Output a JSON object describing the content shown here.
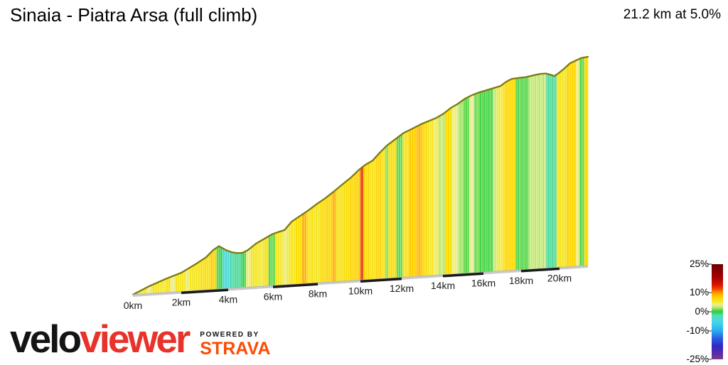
{
  "header": {
    "title": "Sinaia - Piatra Arsa (full climb)",
    "stats": "21.2 km at 5.0%"
  },
  "logo": {
    "brand_black": "velo",
    "brand_red": "viewer",
    "powered_by": "POWERED BY",
    "strava": "STRAVA"
  },
  "legend": {
    "labels": [
      "25%",
      "10%",
      "0%",
      "-10%",
      "-25%"
    ],
    "values": [
      25,
      10,
      0,
      -10,
      -25
    ],
    "max": 25,
    "min": -25,
    "unit": "%"
  },
  "chart_data": {
    "type": "area",
    "title": "Sinaia - Piatra Arsa (full climb)",
    "subtitle": "21.2 km at 5.0%",
    "total_distance_km": 21.2,
    "avg_gradient_pct": 5.0,
    "x_unit": "km",
    "x_max_km": 21.2,
    "grid": false,
    "legend_position": "bottom-right",
    "x_ticks": [
      {
        "km": 0,
        "label": "0km"
      },
      {
        "km": 2,
        "label": "2km"
      },
      {
        "km": 4,
        "label": "4km"
      },
      {
        "km": 6,
        "label": "6km"
      },
      {
        "km": 8,
        "label": "8km"
      },
      {
        "km": 10,
        "label": "10km"
      },
      {
        "km": 12,
        "label": "12km"
      },
      {
        "km": 14,
        "label": "14km"
      },
      {
        "km": 16,
        "label": "16km"
      },
      {
        "km": 18,
        "label": "18km"
      },
      {
        "km": 20,
        "label": "20km"
      }
    ],
    "color_scale": {
      "unit": "%",
      "stops": [
        [
          25,
          "#6d0000"
        ],
        [
          18,
          "#a80000"
        ],
        [
          14,
          "#d81800"
        ],
        [
          12,
          "#f04400"
        ],
        [
          10,
          "#ff9800"
        ],
        [
          8,
          "#ffc800"
        ],
        [
          7,
          "#ffd800"
        ],
        [
          6,
          "#f8e30e"
        ],
        [
          5,
          "#f1e838"
        ],
        [
          4,
          "#eeee8e"
        ],
        [
          3,
          "#d9ec7c"
        ],
        [
          2,
          "#abe56a"
        ],
        [
          1,
          "#63d94b"
        ],
        [
          0,
          "#2fcc44"
        ],
        [
          -1,
          "#3ed387"
        ],
        [
          -2,
          "#57dfa9"
        ],
        [
          -4,
          "#4cd9d9"
        ],
        [
          -6,
          "#3fd2ec"
        ],
        [
          -10,
          "#28aeee"
        ],
        [
          -14,
          "#2a5ce2"
        ],
        [
          -18,
          "#2f2ac6"
        ],
        [
          -22,
          "#5e2ba6"
        ],
        [
          -25,
          "#7c3b93"
        ]
      ]
    },
    "profile_norm_height": [
      [
        0,
        0
      ],
      [
        0.68,
        0.036
      ],
      [
        1.41,
        0.068
      ],
      [
        2.0,
        0.09
      ],
      [
        2.61,
        0.127
      ],
      [
        3.06,
        0.157
      ],
      [
        3.36,
        0.189
      ],
      [
        3.61,
        0.206
      ],
      [
        3.91,
        0.185
      ],
      [
        4.16,
        0.173
      ],
      [
        4.41,
        0.167
      ],
      [
        4.63,
        0.167
      ],
      [
        4.86,
        0.177
      ],
      [
        5.24,
        0.207
      ],
      [
        5.62,
        0.228
      ],
      [
        5.94,
        0.246
      ],
      [
        6.25,
        0.256
      ],
      [
        6.51,
        0.263
      ],
      [
        6.83,
        0.301
      ],
      [
        7.21,
        0.326
      ],
      [
        7.59,
        0.351
      ],
      [
        7.97,
        0.379
      ],
      [
        8.35,
        0.403
      ],
      [
        8.73,
        0.431
      ],
      [
        9.14,
        0.463
      ],
      [
        9.55,
        0.494
      ],
      [
        9.97,
        0.532
      ],
      [
        10.24,
        0.551
      ],
      [
        10.59,
        0.569
      ],
      [
        10.93,
        0.604
      ],
      [
        11.28,
        0.636
      ],
      [
        11.69,
        0.664
      ],
      [
        12.1,
        0.692
      ],
      [
        12.52,
        0.71
      ],
      [
        12.93,
        0.728
      ],
      [
        13.34,
        0.742
      ],
      [
        13.69,
        0.754
      ],
      [
        14.03,
        0.772
      ],
      [
        14.39,
        0.797
      ],
      [
        14.74,
        0.815
      ],
      [
        15.09,
        0.837
      ],
      [
        15.44,
        0.852
      ],
      [
        15.79,
        0.863
      ],
      [
        16.15,
        0.871
      ],
      [
        16.53,
        0.879
      ],
      [
        16.91,
        0.887
      ],
      [
        17.21,
        0.906
      ],
      [
        17.51,
        0.918
      ],
      [
        17.89,
        0.92
      ],
      [
        18.26,
        0.922
      ],
      [
        18.63,
        0.928
      ],
      [
        19.0,
        0.933
      ],
      [
        19.3,
        0.933
      ],
      [
        19.52,
        0.926
      ],
      [
        19.74,
        0.918
      ],
      [
        19.96,
        0.931
      ],
      [
        20.21,
        0.952
      ],
      [
        20.45,
        0.975
      ],
      [
        20.69,
        0.986
      ],
      [
        20.93,
        0.997
      ],
      [
        21.2,
        1.0
      ]
    ],
    "gradient_segments": [
      [
        0,
        0.3,
        5
      ],
      [
        0.3,
        0.55,
        5.5
      ],
      [
        0.55,
        0.8,
        4.5
      ],
      [
        0.8,
        1.1,
        5.5
      ],
      [
        1.1,
        1.35,
        5
      ],
      [
        1.35,
        1.55,
        6
      ],
      [
        1.55,
        1.75,
        4
      ],
      [
        1.75,
        2.2,
        5.5
      ],
      [
        2.2,
        2.35,
        4
      ],
      [
        2.35,
        2.7,
        5.5
      ],
      [
        2.7,
        3.0,
        6
      ],
      [
        3.0,
        3.25,
        6.5
      ],
      [
        3.25,
        3.5,
        7.5
      ],
      [
        3.5,
        3.75,
        0.5
      ],
      [
        3.75,
        4.05,
        -4
      ],
      [
        4.05,
        4.17,
        -2.5
      ],
      [
        4.17,
        4.63,
        -1.5
      ],
      [
        4.63,
        4.8,
        0.5
      ],
      [
        4.8,
        5.0,
        4
      ],
      [
        5.0,
        5.3,
        5.5
      ],
      [
        5.3,
        5.55,
        5
      ],
      [
        5.55,
        5.8,
        6
      ],
      [
        5.8,
        6.1,
        1
      ],
      [
        6.1,
        6.4,
        5.5
      ],
      [
        6.4,
        6.7,
        4.5
      ],
      [
        6.7,
        7.0,
        5.5
      ],
      [
        7.0,
        7.3,
        6.5
      ],
      [
        7.3,
        7.5,
        9
      ],
      [
        7.5,
        7.8,
        6
      ],
      [
        7.8,
        8.1,
        5.5
      ],
      [
        8.1,
        8.4,
        6.5
      ],
      [
        8.4,
        8.7,
        7
      ],
      [
        8.7,
        8.85,
        9.5
      ],
      [
        8.85,
        9.2,
        6
      ],
      [
        9.2,
        9.5,
        6.5
      ],
      [
        9.5,
        9.8,
        7
      ],
      [
        9.8,
        10.0,
        7.5
      ],
      [
        10.0,
        10.15,
        13
      ],
      [
        10.15,
        10.45,
        7
      ],
      [
        10.45,
        10.75,
        6
      ],
      [
        10.75,
        11.0,
        7.5
      ],
      [
        11.0,
        11.2,
        6
      ],
      [
        11.2,
        11.35,
        1.5
      ],
      [
        11.35,
        11.75,
        6.5
      ],
      [
        11.75,
        12.05,
        1
      ],
      [
        12.05,
        12.35,
        6
      ],
      [
        12.35,
        12.7,
        7.5
      ],
      [
        12.7,
        13.0,
        8.5
      ],
      [
        13.0,
        13.25,
        7
      ],
      [
        13.25,
        13.55,
        5.5
      ],
      [
        13.55,
        13.8,
        4.5
      ],
      [
        13.8,
        14.1,
        2.5
      ],
      [
        14.1,
        14.45,
        6.5
      ],
      [
        14.45,
        14.75,
        4
      ],
      [
        14.75,
        15.0,
        2
      ],
      [
        15.0,
        15.3,
        0.8
      ],
      [
        15.3,
        15.55,
        3.5
      ],
      [
        15.55,
        15.8,
        1
      ],
      [
        15.8,
        16.5,
        0.5
      ],
      [
        16.5,
        16.7,
        2.5
      ],
      [
        16.7,
        17.1,
        5
      ],
      [
        17.1,
        17.7,
        7
      ],
      [
        17.7,
        18.4,
        0.8
      ],
      [
        18.4,
        19.3,
        2.5
      ],
      [
        19.3,
        19.85,
        -1.5
      ],
      [
        19.85,
        20.3,
        5.5
      ],
      [
        20.3,
        20.7,
        7
      ],
      [
        20.7,
        20.85,
        4.5
      ],
      [
        20.85,
        21.05,
        1
      ],
      [
        21.05,
        21.2,
        6.5
      ]
    ]
  }
}
